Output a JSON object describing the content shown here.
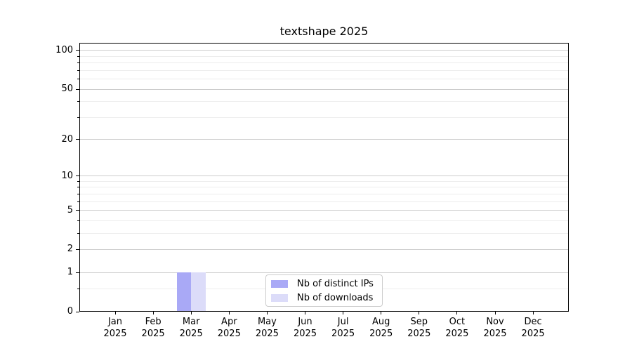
{
  "chart_data": {
    "type": "bar",
    "title": "textshape 2025",
    "categories": [
      "Jan",
      "Feb",
      "Mar",
      "Apr",
      "May",
      "Jun",
      "Jul",
      "Aug",
      "Sep",
      "Oct",
      "Nov",
      "Dec"
    ],
    "x_year": "2025",
    "series": [
      {
        "name": "Nb of distinct IPs",
        "color": "#a9a9f6",
        "values": [
          0,
          0,
          1,
          0,
          0,
          0,
          0,
          0,
          0,
          0,
          0,
          0
        ]
      },
      {
        "name": "Nb of downloads",
        "color": "#dcdcf9",
        "values": [
          0,
          0,
          1,
          0,
          0,
          0,
          0,
          0,
          0,
          0,
          0,
          0
        ]
      }
    ],
    "y_axis": {
      "scale": "log10(1+x)",
      "major_ticks": [
        0,
        1,
        2,
        5,
        10,
        20,
        50,
        100
      ],
      "minor_ticks": [
        0.5,
        3,
        4,
        6,
        7,
        8,
        9,
        30,
        40,
        60,
        70,
        80,
        90
      ]
    },
    "legend": {
      "position": "lower-center-inside"
    },
    "grid": {
      "horizontal_major": true,
      "horizontal_minor": true,
      "vertical": false
    },
    "colors": {
      "bar_distinct_ips": "#a9a9f6",
      "bar_downloads": "#dcdcf9",
      "major_grid": "#cdcdcd",
      "minor_grid": "#ededed",
      "axis": "#000000",
      "text": "#000000",
      "legend_border": "#cccccc",
      "background": "#ffffff"
    }
  }
}
